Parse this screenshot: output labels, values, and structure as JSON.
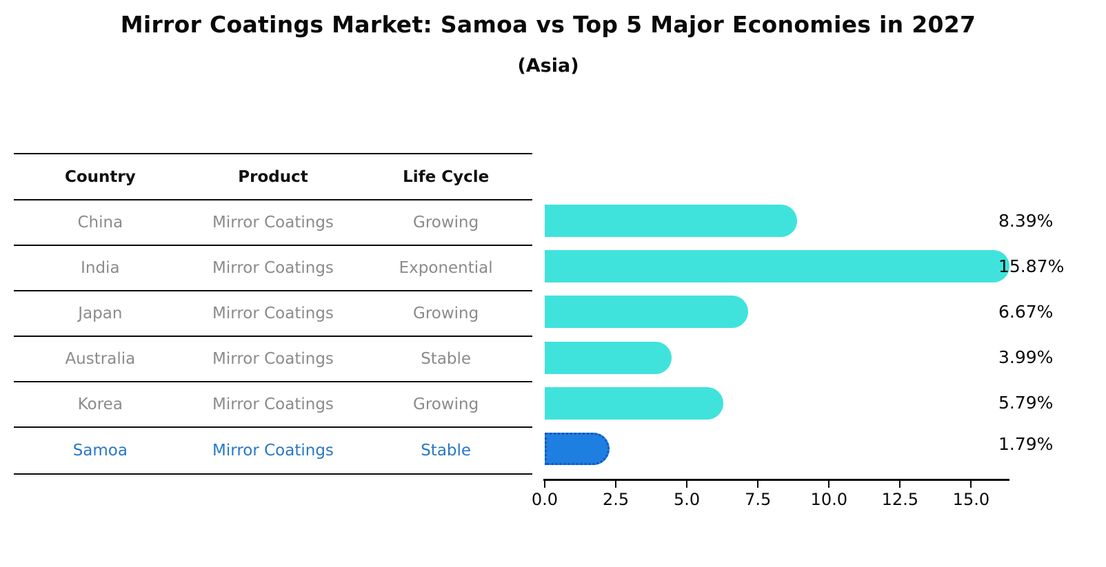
{
  "title": "Mirror Coatings Market: Samoa vs Top 5 Major Economies in 2027",
  "subtitle": "(Asia)",
  "table": {
    "headers": {
      "country": "Country",
      "product": "Product",
      "life_cycle": "Life Cycle"
    },
    "rows": [
      {
        "country": "China",
        "product": "Mirror Coatings",
        "life_cycle": "Growing",
        "highlight": false
      },
      {
        "country": "India",
        "product": "Mirror Coatings",
        "life_cycle": "Exponential",
        "highlight": false
      },
      {
        "country": "Japan",
        "product": "Mirror Coatings",
        "life_cycle": "Growing",
        "highlight": false
      },
      {
        "country": "Australia",
        "product": "Mirror Coatings",
        "life_cycle": "Stable",
        "highlight": false
      },
      {
        "country": "Korea",
        "product": "Mirror Coatings",
        "life_cycle": "Growing",
        "highlight": false
      },
      {
        "country": "Samoa",
        "product": "Mirror Coatings",
        "life_cycle": "Stable",
        "highlight": true
      }
    ]
  },
  "chart_data": {
    "type": "bar",
    "orientation": "horizontal",
    "categories": [
      "China",
      "India",
      "Japan",
      "Australia",
      "Korea",
      "Samoa"
    ],
    "values": [
      8.39,
      15.87,
      6.67,
      3.99,
      5.79,
      1.79
    ],
    "value_labels": [
      "8.39%",
      "15.87%",
      "6.67%",
      "3.99%",
      "5.79%",
      "1.79%"
    ],
    "highlight_category": "Samoa",
    "x_ticks": [
      "0.0",
      "2.5",
      "5.0",
      "7.5",
      "10.0",
      "12.5",
      "15.0"
    ],
    "xlim": [
      0,
      16.3
    ],
    "grid": false,
    "legend": false,
    "title": "Mirror Coatings Market: Samoa vs Top 5 Major Economies in 2027",
    "subtitle": "(Asia)",
    "xlabel": "",
    "ylabel": "",
    "colors": {
      "default_bar": "#40e3dc",
      "highlight_bar": "#1e7fe0",
      "highlight_border": "#1353c8",
      "highlight_text": "#2878c8",
      "row_text": "#8b8b8b",
      "axis": "#0a0a0a"
    }
  }
}
